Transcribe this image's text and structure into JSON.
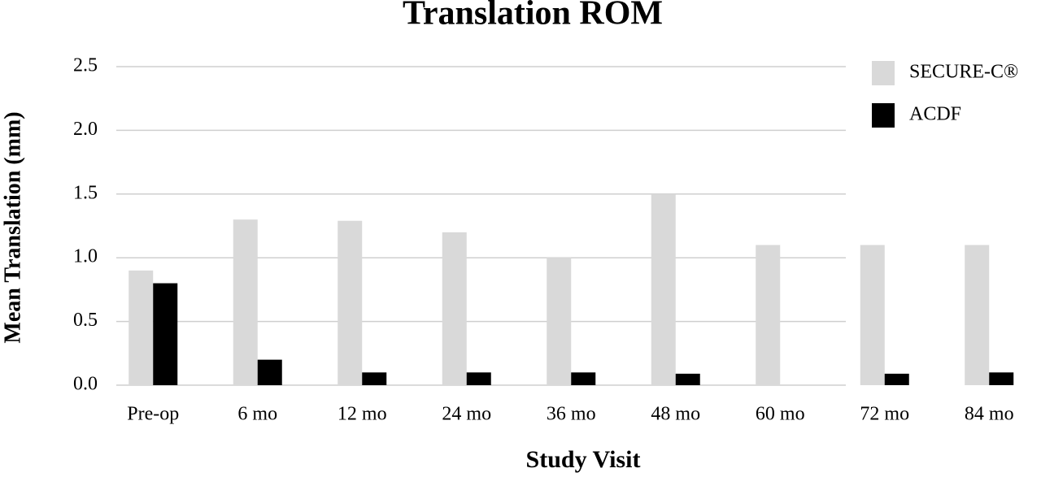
{
  "chart_data": {
    "type": "bar",
    "title": "Translation ROM",
    "x_label": "Study Visit",
    "y_label": "Mean Translation (mm)",
    "categories": [
      "Pre-op",
      "6 mo",
      "12 mo",
      "24 mo",
      "36 mo",
      "48 mo",
      "60 mo",
      "72 mo",
      "84 mo"
    ],
    "series": [
      {
        "name": "SECURE-C®",
        "color": "#d9d9d9",
        "values": [
          0.9,
          1.3,
          1.29,
          1.2,
          1.0,
          1.5,
          1.1,
          1.1,
          1.1
        ]
      },
      {
        "name": "ACDF",
        "color": "#000000",
        "values": [
          0.8,
          0.2,
          0.1,
          0.1,
          0.1,
          0.09,
          null,
          0.09,
          0.1
        ]
      }
    ],
    "ylim": [
      0,
      2.5
    ],
    "yticks": [
      {
        "value": 0,
        "label": "0.0"
      },
      0.5,
      {
        "value": 1,
        "label": "1.0"
      },
      1.5,
      {
        "value": 2,
        "label": "2.0"
      },
      2.5
    ],
    "grid": true,
    "legend": "top-right"
  }
}
